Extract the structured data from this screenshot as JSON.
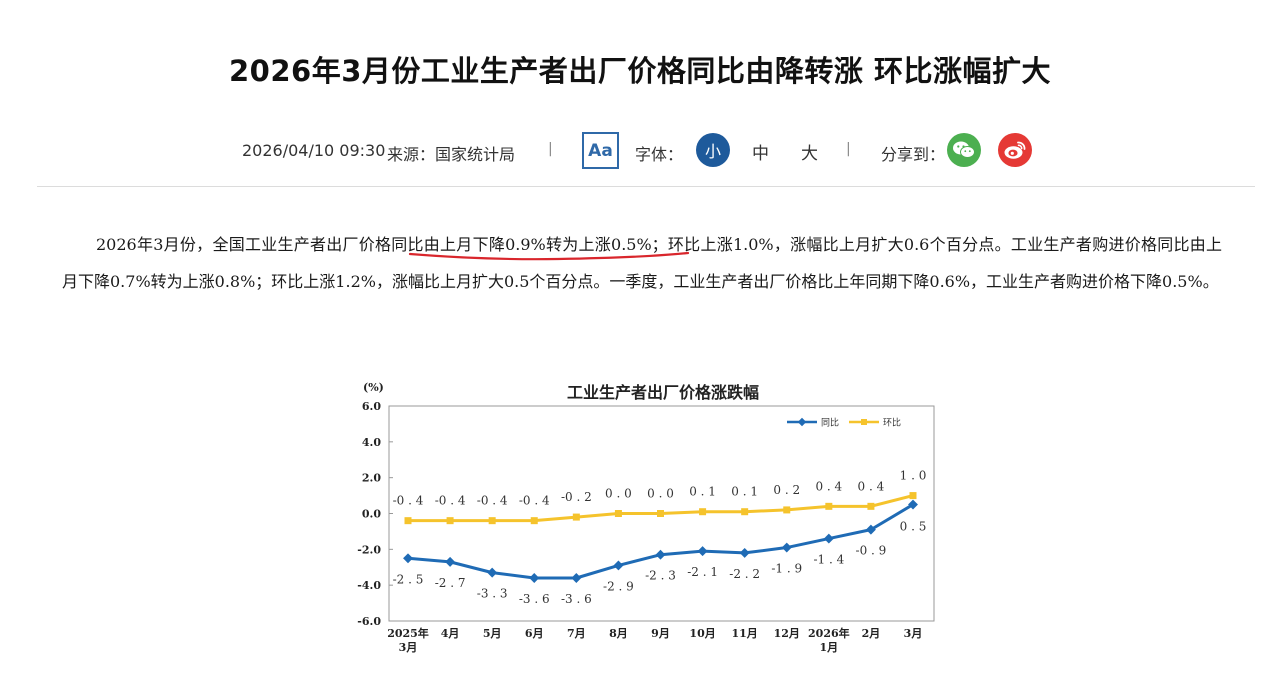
{
  "article": {
    "title": "2026年3月份工业生产者出厂价格同比由降转涨 环比涨幅扩大",
    "datetime": "2026/04/10 09:30",
    "source": "来源：国家统计局",
    "separator": "|",
    "aa_label": "Aa",
    "font_label": "字体：",
    "font_sizes": [
      "小",
      "中",
      "大"
    ],
    "share_label": "分享到：",
    "paragraph": {
      "before": "2026年3月份，全国工业生产者出厂价格",
      "highlight": "同比由上月下降0.9%转为上涨0.5%",
      "after": "；环比上涨1.0%，涨幅比上月扩大0.6个百分点。工业生产者购进价格同比由上月下降0.7%转为上涨0.8%；环比上涨1.2%，涨幅比上月扩大0.5个百分点。一季度，工业生产者出厂价格比上年同期下降0.6%，工业生产者购进价格下降0.5%。"
    },
    "colors": {
      "accent": "#1e5a9b",
      "underline": "#d9262c",
      "wechat": "#4caf50",
      "weibo": "#e53935"
    }
  },
  "chart_data": {
    "type": "line",
    "title": "工业生产者出厂价格涨跌幅",
    "ylabel": "(%)",
    "ylim": [
      -6.0,
      6.0
    ],
    "yticks": [
      "6.0",
      "4.0",
      "2.0",
      "0.0",
      "-2.0",
      "-4.0",
      "-6.0"
    ],
    "ytick_values": [
      6,
      4,
      2,
      0,
      -2,
      -4,
      -6
    ],
    "categories": [
      [
        "2025年",
        "3月"
      ],
      [
        "4月"
      ],
      [
        "5月"
      ],
      [
        "6月"
      ],
      [
        "7月"
      ],
      [
        "8月"
      ],
      [
        "9月"
      ],
      [
        "10月"
      ],
      [
        "11月"
      ],
      [
        "12月"
      ],
      [
        "2026年",
        "1月"
      ],
      [
        "2月"
      ],
      [
        "3月"
      ]
    ],
    "legend_position": "top-right",
    "series": [
      {
        "name": "同比",
        "color": "#1f6bb5",
        "values": [
          -2.5,
          -2.7,
          -3.3,
          -3.6,
          -3.6,
          -2.9,
          -2.3,
          -2.1,
          -2.2,
          -1.9,
          -1.4,
          -0.9,
          0.5
        ],
        "labels": [
          "-2.5",
          "-2.7",
          "-3.3",
          "-3.6",
          "-3.6",
          "-2.9",
          "-2.3",
          "-2.1",
          "-2.2",
          "-1.9",
          "-1.4",
          "-0.9",
          "0.5"
        ]
      },
      {
        "name": "环比",
        "color": "#f5c32c",
        "values": [
          -0.4,
          -0.4,
          -0.4,
          -0.4,
          -0.2,
          0.0,
          0.0,
          0.1,
          0.1,
          0.2,
          0.4,
          0.4,
          1.0
        ],
        "labels": [
          "-0.4",
          "-0.4",
          "-0.4",
          "-0.4",
          "-0.2",
          "0.0",
          "0.0",
          "0.1",
          "0.1",
          "0.2",
          "0.4",
          "0.4",
          "1.0"
        ]
      }
    ]
  }
}
